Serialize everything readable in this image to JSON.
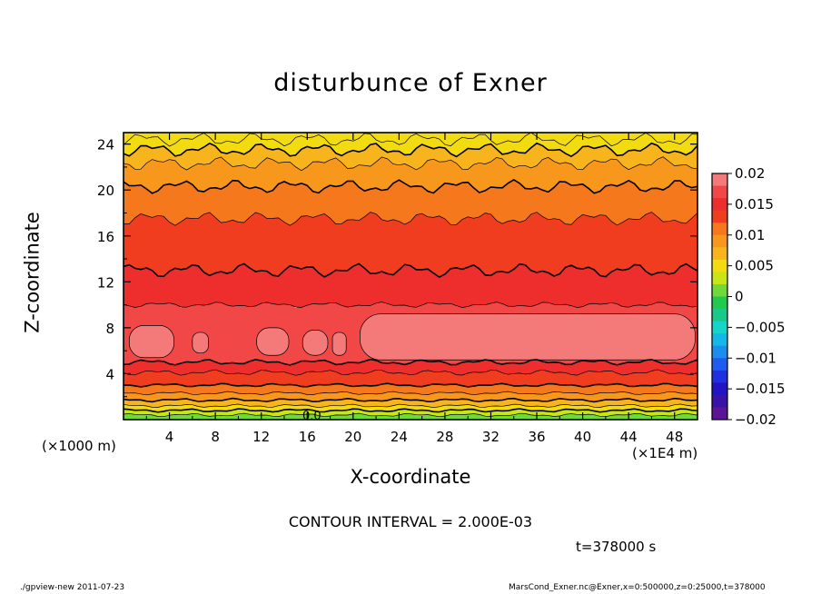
{
  "title": "disturbunce of Exner",
  "xlabel": "X-coordinate",
  "ylabel": "Z-coordinate",
  "x_unit_left": "(×1000 m)",
  "x_unit_right": "(×1E4 m)",
  "contour_interval_text": "CONTOUR INTERVAL = 2.000E-03",
  "time_text": "t=378000 s",
  "footer_left": "./gpview-new   2011-07-23",
  "footer_right": "MarsCond_Exner.nc@Exner,x=0:500000,z=0:25000,t=378000",
  "inline_label": "0.0",
  "chart_data": {
    "type": "heatmap",
    "title": "disturbunce of Exner",
    "xlabel": "X-coordinate",
    "ylabel": "Z-coordinate",
    "xlim": [
      0,
      50
    ],
    "ylim": [
      0,
      25
    ],
    "x_ticks": [
      "4",
      "8",
      "12",
      "16",
      "20",
      "24",
      "28",
      "32",
      "36",
      "40",
      "44",
      "48"
    ],
    "y_ticks": [
      "4",
      "8",
      "12",
      "16",
      "20",
      "24"
    ],
    "x_tick_values": [
      4,
      8,
      12,
      16,
      20,
      24,
      28,
      32,
      36,
      40,
      44,
      48
    ],
    "y_tick_values": [
      4,
      8,
      12,
      16,
      20,
      24
    ],
    "colorbar": {
      "ticks": [
        "0.02",
        "0.015",
        "0.01",
        "0.005",
        "0",
        "−0.005",
        "−0.01",
        "−0.015",
        "−0.02"
      ],
      "tick_values": [
        0.02,
        0.015,
        0.01,
        0.005,
        0,
        -0.005,
        -0.01,
        -0.015,
        -0.02
      ],
      "levels": [
        {
          "lo": 0.018,
          "hi": 0.02,
          "color": "#f47a7a"
        },
        {
          "lo": 0.016,
          "hi": 0.018,
          "color": "#f24747"
        },
        {
          "lo": 0.014,
          "hi": 0.016,
          "color": "#ee2d2d"
        },
        {
          "lo": 0.012,
          "hi": 0.014,
          "color": "#f03c1f"
        },
        {
          "lo": 0.01,
          "hi": 0.012,
          "color": "#f5781c"
        },
        {
          "lo": 0.008,
          "hi": 0.01,
          "color": "#f7971c"
        },
        {
          "lo": 0.006,
          "hi": 0.008,
          "color": "#f8b41c"
        },
        {
          "lo": 0.004,
          "hi": 0.006,
          "color": "#f2db11"
        },
        {
          "lo": 0.002,
          "hi": 0.004,
          "color": "#c8e615"
        },
        {
          "lo": 0.0,
          "hi": 0.002,
          "color": "#6fd93a"
        },
        {
          "lo": -0.002,
          "hi": 0.0,
          "color": "#21c94d"
        },
        {
          "lo": -0.004,
          "hi": -0.002,
          "color": "#18c98b"
        },
        {
          "lo": -0.006,
          "hi": -0.004,
          "color": "#13d5c8"
        },
        {
          "lo": -0.008,
          "hi": -0.006,
          "color": "#12b8e8"
        },
        {
          "lo": -0.01,
          "hi": -0.008,
          "color": "#1c8cee"
        },
        {
          "lo": -0.012,
          "hi": -0.01,
          "color": "#1e5cf0"
        },
        {
          "lo": -0.014,
          "hi": -0.012,
          "color": "#2030e0"
        },
        {
          "lo": -0.016,
          "hi": -0.014,
          "color": "#2313c5"
        },
        {
          "lo": -0.018,
          "hi": -0.016,
          "color": "#3a12a8"
        },
        {
          "lo": -0.02,
          "hi": -0.018,
          "color": "#5a1696"
        }
      ]
    },
    "contour_interval": 0.002,
    "bands_by_height": [
      {
        "z0": 0.0,
        "z1": 0.4,
        "value": 0.001
      },
      {
        "z0": 0.4,
        "z1": 0.8,
        "value": 0.003
      },
      {
        "z0": 0.8,
        "z1": 1.2,
        "value": 0.005
      },
      {
        "z0": 1.2,
        "z1": 1.7,
        "value": 0.007
      },
      {
        "z0": 1.7,
        "z1": 2.3,
        "value": 0.009
      },
      {
        "z0": 2.3,
        "z1": 3.0,
        "value": 0.011
      },
      {
        "z0": 3.0,
        "z1": 4.1,
        "value": 0.013
      },
      {
        "z0": 4.1,
        "z1": 5.0,
        "value": 0.015
      },
      {
        "z0": 5.0,
        "z1": 10.0,
        "value": 0.017
      },
      {
        "z0": 10.0,
        "z1": 13.0,
        "value": 0.015
      },
      {
        "z0": 13.0,
        "z1": 17.5,
        "value": 0.013
      },
      {
        "z0": 17.5,
        "z1": 20.3,
        "value": 0.011
      },
      {
        "z0": 20.3,
        "z1": 22.3,
        "value": 0.009
      },
      {
        "z0": 22.3,
        "z1": 23.5,
        "value": 0.007
      },
      {
        "z0": 23.5,
        "z1": 24.4,
        "value": 0.005
      },
      {
        "z0": 24.4,
        "z1": 25.0,
        "value": 0.004
      }
    ],
    "max_regions": [
      {
        "x0": 0.5,
        "x1": 4.4,
        "z0": 5.4,
        "z1": 8.2
      },
      {
        "x0": 6.0,
        "x1": 7.4,
        "z0": 5.8,
        "z1": 7.6
      },
      {
        "x0": 11.6,
        "x1": 14.4,
        "z0": 5.6,
        "z1": 8.0
      },
      {
        "x0": 15.6,
        "x1": 17.8,
        "z0": 5.6,
        "z1": 7.8
      },
      {
        "x0": 18.2,
        "x1": 19.4,
        "z0": 5.6,
        "z1": 7.6
      },
      {
        "x0": 20.6,
        "x1": 49.8,
        "z0": 5.2,
        "z1": 9.2
      }
    ]
  }
}
